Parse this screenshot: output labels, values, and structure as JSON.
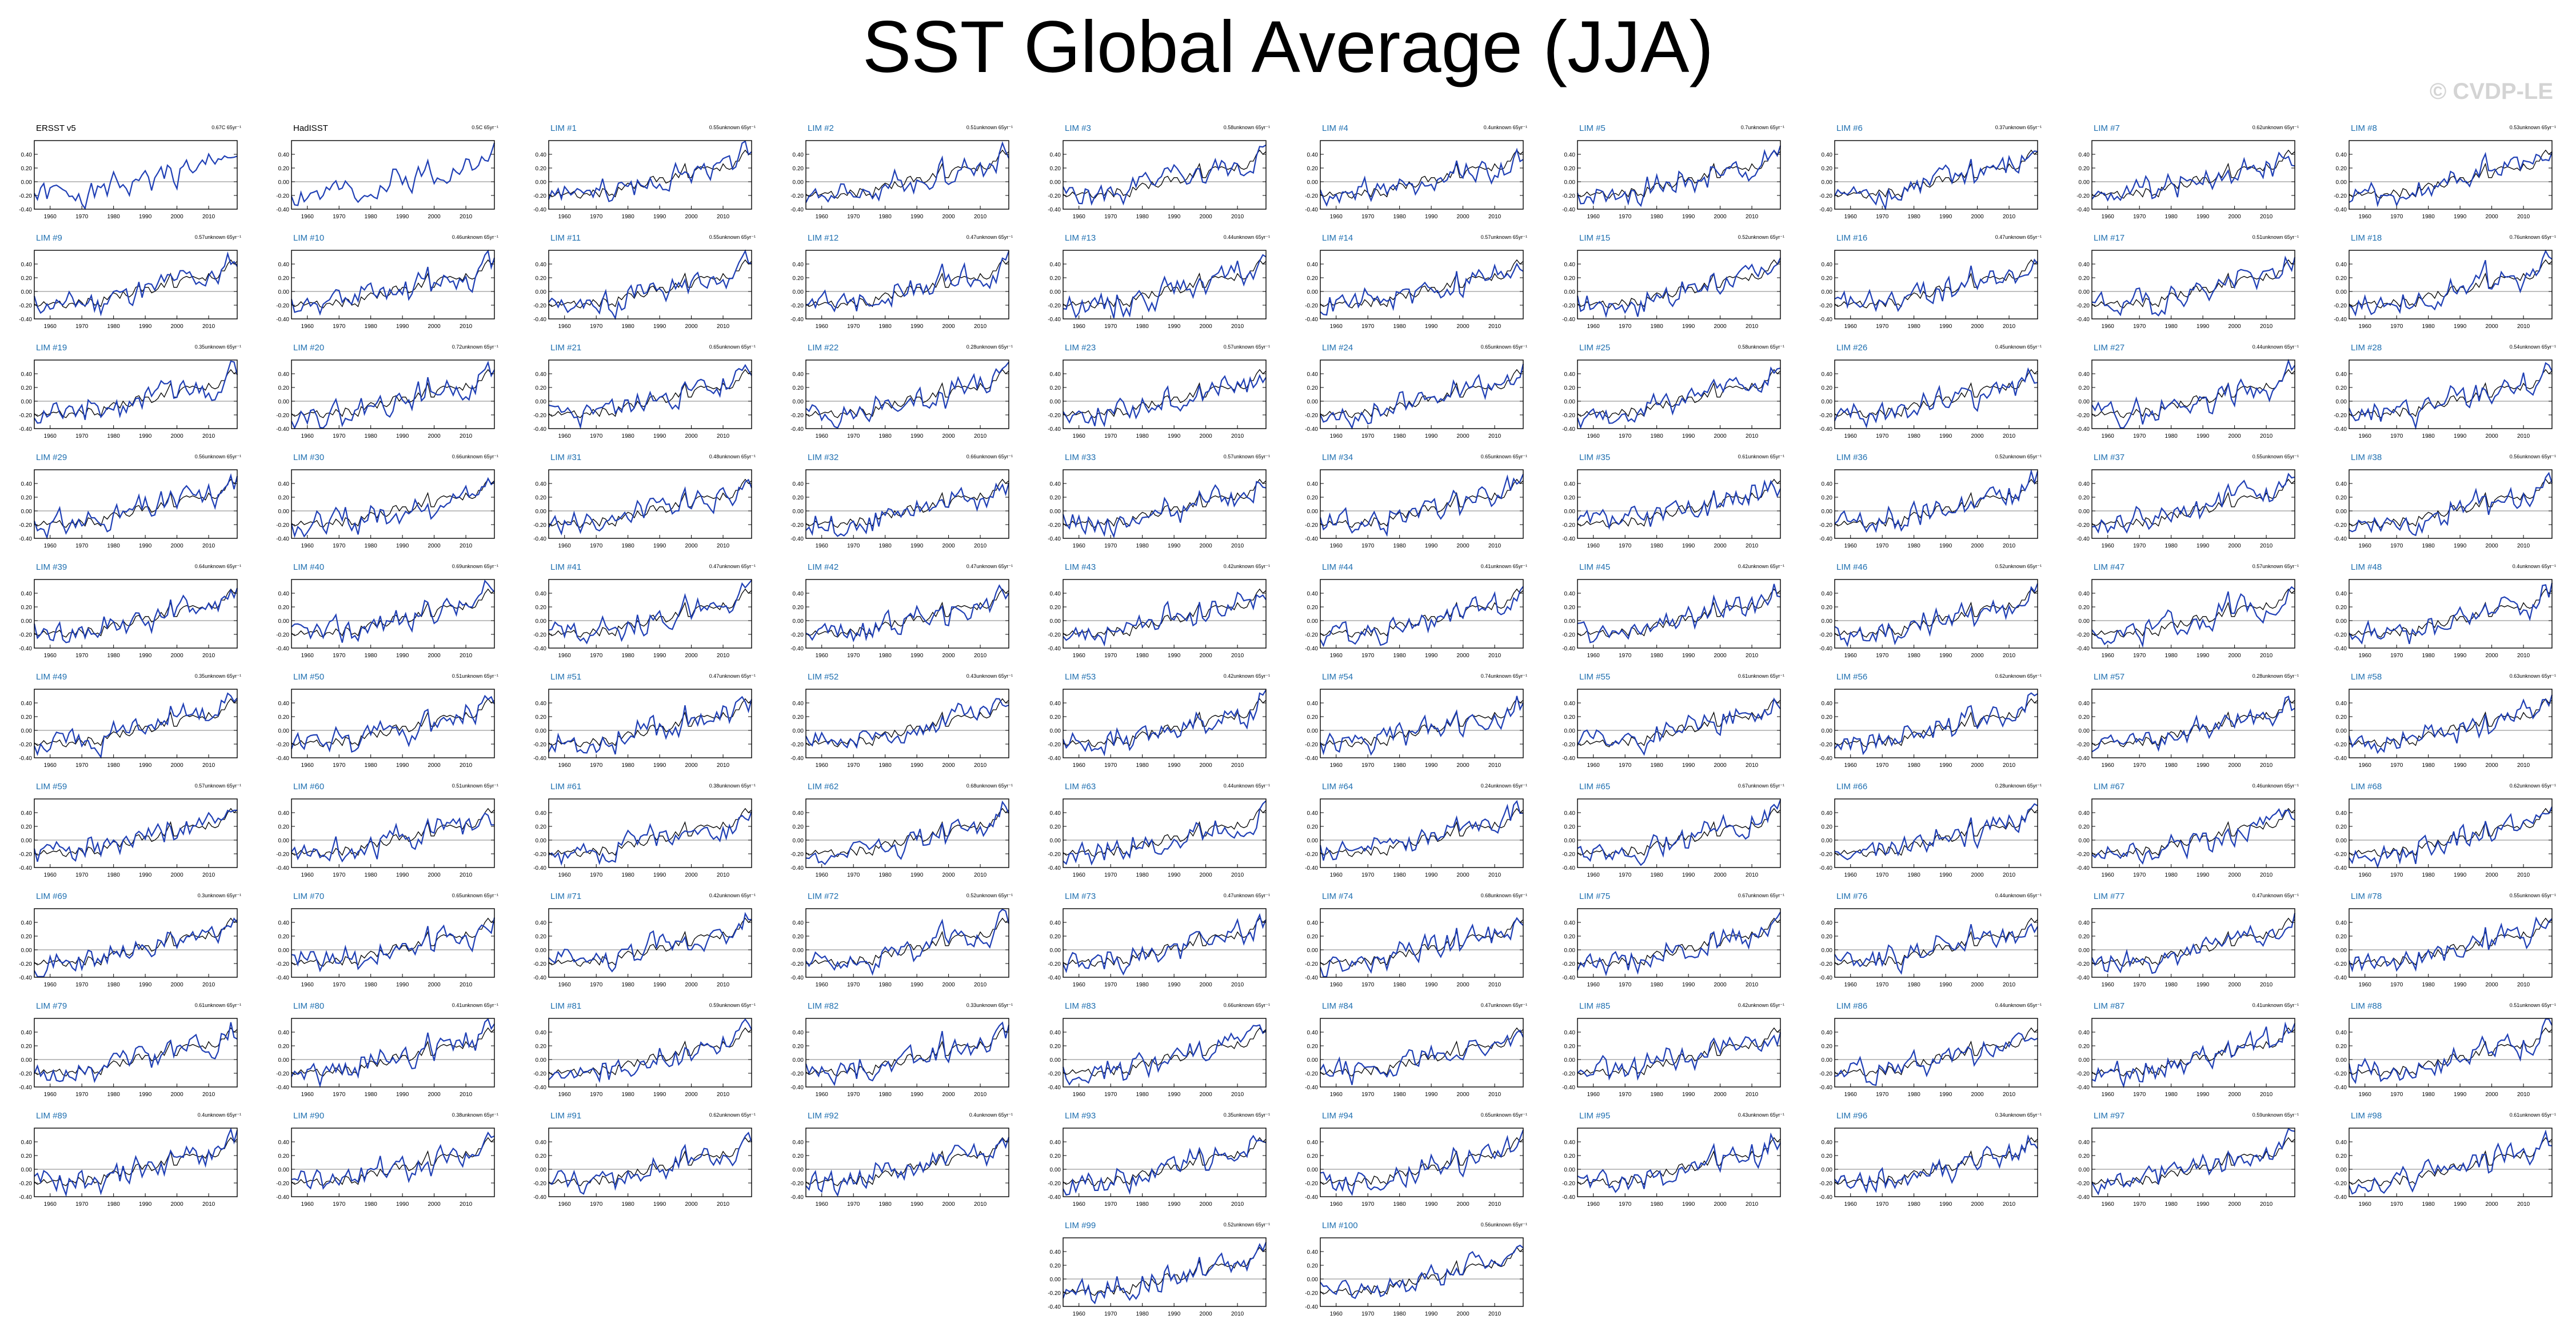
{
  "title": "SST Global Average (JJA)",
  "watermark": "© CVDP-LE",
  "colors": {
    "observed_line": "#000000",
    "lim_line": "#1f3fb5",
    "zero_line": "#999999",
    "lim_title": "#1e6fb0"
  },
  "chart_data": {
    "type": "line",
    "layout": "small multiples, 10 columns",
    "x_range": [
      1955,
      2019
    ],
    "y_range": [
      -0.4,
      0.6
    ],
    "x_ticks": [
      "1960",
      "1970",
      "1980",
      "1990",
      "2000",
      "2010"
    ],
    "y_ticks": [
      "0.40",
      "0.20",
      "0.00",
      "-0.20",
      "-0.40"
    ],
    "years": {
      "start": 1955,
      "end": 2019
    },
    "observed_reference": [
      -0.18,
      -0.22,
      -0.2,
      -0.15,
      -0.2,
      -0.18,
      -0.16,
      -0.17,
      -0.14,
      -0.22,
      -0.24,
      -0.18,
      -0.17,
      -0.2,
      -0.12,
      -0.16,
      -0.22,
      -0.1,
      -0.12,
      -0.2,
      -0.18,
      -0.22,
      -0.08,
      -0.12,
      -0.06,
      -0.02,
      -0.04,
      -0.1,
      0.0,
      -0.06,
      -0.08,
      -0.04,
      0.06,
      0.08,
      0.0,
      0.06,
      0.06,
      -0.02,
      0.0,
      0.04,
      0.12,
      0.06,
      0.16,
      0.26,
      0.06,
      0.06,
      0.16,
      0.2,
      0.22,
      0.2,
      0.22,
      0.2,
      0.18,
      0.2,
      0.16,
      0.26,
      0.2,
      0.18,
      0.2,
      0.3,
      0.3,
      0.4,
      0.46,
      0.4,
      0.44
    ],
    "panels": [
      {
        "title": "ERSST v5",
        "trend": "0.67C 65yr⁻¹",
        "kind": "obs",
        "seed": 1
      },
      {
        "title": "HadISST",
        "trend": "0.5C 65yr⁻¹",
        "kind": "obs",
        "seed": 2
      },
      {
        "title": "LIM #1",
        "trend": "0.55unknown 65yr⁻¹",
        "kind": "lim",
        "seed": 3
      },
      {
        "title": "LIM #2",
        "trend": "0.51unknown 65yr⁻¹",
        "kind": "lim",
        "seed": 4
      },
      {
        "title": "LIM #3",
        "trend": "0.58unknown 65yr⁻¹",
        "kind": "lim",
        "seed": 5
      },
      {
        "title": "LIM #4",
        "trend": "0.4unknown 65yr⁻¹",
        "kind": "lim",
        "seed": 6
      },
      {
        "title": "LIM #5",
        "trend": "0.7unknown 65yr⁻¹",
        "kind": "lim",
        "seed": 7
      },
      {
        "title": "LIM #6",
        "trend": "0.37unknown 65yr⁻¹",
        "kind": "lim",
        "seed": 8
      },
      {
        "title": "LIM #7",
        "trend": "0.62unknown 65yr⁻¹",
        "kind": "lim",
        "seed": 9
      },
      {
        "title": "LIM #8",
        "trend": "0.53unknown 65yr⁻¹",
        "kind": "lim",
        "seed": 10
      },
      {
        "title": "LIM #9",
        "trend": "0.57unknown 65yr⁻¹",
        "kind": "lim",
        "seed": 11
      },
      {
        "title": "LIM #10",
        "trend": "0.46unknown 65yr⁻¹",
        "kind": "lim",
        "seed": 12
      },
      {
        "title": "LIM #11",
        "trend": "0.55unknown 65yr⁻¹",
        "kind": "lim",
        "seed": 13
      },
      {
        "title": "LIM #12",
        "trend": "0.47unknown 65yr⁻¹",
        "kind": "lim",
        "seed": 14
      },
      {
        "title": "LIM #13",
        "trend": "0.44unknown 65yr⁻¹",
        "kind": "lim",
        "seed": 15
      },
      {
        "title": "LIM #14",
        "trend": "0.57unknown 65yr⁻¹",
        "kind": "lim",
        "seed": 16
      },
      {
        "title": "LIM #15",
        "trend": "0.52unknown 65yr⁻¹",
        "kind": "lim",
        "seed": 17
      },
      {
        "title": "LIM #16",
        "trend": "0.47unknown 65yr⁻¹",
        "kind": "lim",
        "seed": 18
      },
      {
        "title": "LIM #17",
        "trend": "0.51unknown 65yr⁻¹",
        "kind": "lim",
        "seed": 19
      },
      {
        "title": "LIM #18",
        "trend": "0.76unknown 65yr⁻¹",
        "kind": "lim",
        "seed": 20
      },
      {
        "title": "LIM #19",
        "trend": "0.35unknown 65yr⁻¹",
        "kind": "lim",
        "seed": 21
      },
      {
        "title": "LIM #20",
        "trend": "0.72unknown 65yr⁻¹",
        "kind": "lim",
        "seed": 22
      },
      {
        "title": "LIM #21",
        "trend": "0.65unknown 65yr⁻¹",
        "kind": "lim",
        "seed": 23
      },
      {
        "title": "LIM #22",
        "trend": "0.28unknown 65yr⁻¹",
        "kind": "lim",
        "seed": 24
      },
      {
        "title": "LIM #23",
        "trend": "0.57unknown 65yr⁻¹",
        "kind": "lim",
        "seed": 25
      },
      {
        "title": "LIM #24",
        "trend": "0.65unknown 65yr⁻¹",
        "kind": "lim",
        "seed": 26
      },
      {
        "title": "LIM #25",
        "trend": "0.58unknown 65yr⁻¹",
        "kind": "lim",
        "seed": 27
      },
      {
        "title": "LIM #26",
        "trend": "0.45unknown 65yr⁻¹",
        "kind": "lim",
        "seed": 28
      },
      {
        "title": "LIM #27",
        "trend": "0.44unknown 65yr⁻¹",
        "kind": "lim",
        "seed": 29
      },
      {
        "title": "LIM #28",
        "trend": "0.54unknown 65yr⁻¹",
        "kind": "lim",
        "seed": 30
      },
      {
        "title": "LIM #29",
        "trend": "0.56unknown 65yr⁻¹",
        "kind": "lim",
        "seed": 31
      },
      {
        "title": "LIM #30",
        "trend": "0.66unknown 65yr⁻¹",
        "kind": "lim",
        "seed": 32
      },
      {
        "title": "LIM #31",
        "trend": "0.48unknown 65yr⁻¹",
        "kind": "lim",
        "seed": 33
      },
      {
        "title": "LIM #32",
        "trend": "0.66unknown 65yr⁻¹",
        "kind": "lim",
        "seed": 34
      },
      {
        "title": "LIM #33",
        "trend": "0.57unknown 65yr⁻¹",
        "kind": "lim",
        "seed": 35
      },
      {
        "title": "LIM #34",
        "trend": "0.65unknown 65yr⁻¹",
        "kind": "lim",
        "seed": 36
      },
      {
        "title": "LIM #35",
        "trend": "0.61unknown 65yr⁻¹",
        "kind": "lim",
        "seed": 37
      },
      {
        "title": "LIM #36",
        "trend": "0.52unknown 65yr⁻¹",
        "kind": "lim",
        "seed": 38
      },
      {
        "title": "LIM #37",
        "trend": "0.55unknown 65yr⁻¹",
        "kind": "lim",
        "seed": 39
      },
      {
        "title": "LIM #38",
        "trend": "0.56unknown 65yr⁻¹",
        "kind": "lim",
        "seed": 40
      },
      {
        "title": "LIM #39",
        "trend": "0.64unknown 65yr⁻¹",
        "kind": "lim",
        "seed": 41
      },
      {
        "title": "LIM #40",
        "trend": "0.69unknown 65yr⁻¹",
        "kind": "lim",
        "seed": 42
      },
      {
        "title": "LIM #41",
        "trend": "0.47unknown 65yr⁻¹",
        "kind": "lim",
        "seed": 43
      },
      {
        "title": "LIM #42",
        "trend": "0.47unknown 65yr⁻¹",
        "kind": "lim",
        "seed": 44
      },
      {
        "title": "LIM #43",
        "trend": "0.42unknown 65yr⁻¹",
        "kind": "lim",
        "seed": 45
      },
      {
        "title": "LIM #44",
        "trend": "0.41unknown 65yr⁻¹",
        "kind": "lim",
        "seed": 46
      },
      {
        "title": "LIM #45",
        "trend": "0.42unknown 65yr⁻¹",
        "kind": "lim",
        "seed": 47
      },
      {
        "title": "LIM #46",
        "trend": "0.52unknown 65yr⁻¹",
        "kind": "lim",
        "seed": 48
      },
      {
        "title": "LIM #47",
        "trend": "0.57unknown 65yr⁻¹",
        "kind": "lim",
        "seed": 49
      },
      {
        "title": "LIM #48",
        "trend": "0.4unknown 65yr⁻¹",
        "kind": "lim",
        "seed": 50
      },
      {
        "title": "LIM #49",
        "trend": "0.35unknown 65yr⁻¹",
        "kind": "lim",
        "seed": 51
      },
      {
        "title": "LIM #50",
        "trend": "0.51unknown 65yr⁻¹",
        "kind": "lim",
        "seed": 52
      },
      {
        "title": "LIM #51",
        "trend": "0.47unknown 65yr⁻¹",
        "kind": "lim",
        "seed": 53
      },
      {
        "title": "LIM #52",
        "trend": "0.43unknown 65yr⁻¹",
        "kind": "lim",
        "seed": 54
      },
      {
        "title": "LIM #53",
        "trend": "0.42unknown 65yr⁻¹",
        "kind": "lim",
        "seed": 55
      },
      {
        "title": "LIM #54",
        "trend": "0.74unknown 65yr⁻¹",
        "kind": "lim",
        "seed": 56
      },
      {
        "title": "LIM #55",
        "trend": "0.61unknown 65yr⁻¹",
        "kind": "lim",
        "seed": 57
      },
      {
        "title": "LIM #56",
        "trend": "0.62unknown 65yr⁻¹",
        "kind": "lim",
        "seed": 58
      },
      {
        "title": "LIM #57",
        "trend": "0.28unknown 65yr⁻¹",
        "kind": "lim",
        "seed": 59
      },
      {
        "title": "LIM #58",
        "trend": "0.63unknown 65yr⁻¹",
        "kind": "lim",
        "seed": 60
      },
      {
        "title": "LIM #59",
        "trend": "0.57unknown 65yr⁻¹",
        "kind": "lim",
        "seed": 61
      },
      {
        "title": "LIM #60",
        "trend": "0.51unknown 65yr⁻¹",
        "kind": "lim",
        "seed": 62
      },
      {
        "title": "LIM #61",
        "trend": "0.38unknown 65yr⁻¹",
        "kind": "lim",
        "seed": 63
      },
      {
        "title": "LIM #62",
        "trend": "0.68unknown 65yr⁻¹",
        "kind": "lim",
        "seed": 64
      },
      {
        "title": "LIM #63",
        "trend": "0.44unknown 65yr⁻¹",
        "kind": "lim",
        "seed": 65
      },
      {
        "title": "LIM #64",
        "trend": "0.24unknown 65yr⁻¹",
        "kind": "lim",
        "seed": 66
      },
      {
        "title": "LIM #65",
        "trend": "0.67unknown 65yr⁻¹",
        "kind": "lim",
        "seed": 67
      },
      {
        "title": "LIM #66",
        "trend": "0.28unknown 65yr⁻¹",
        "kind": "lim",
        "seed": 68
      },
      {
        "title": "LIM #67",
        "trend": "0.46unknown 65yr⁻¹",
        "kind": "lim",
        "seed": 69
      },
      {
        "title": "LIM #68",
        "trend": "0.62unknown 65yr⁻¹",
        "kind": "lim",
        "seed": 70
      },
      {
        "title": "LIM #69",
        "trend": "0.3unknown 65yr⁻¹",
        "kind": "lim",
        "seed": 71
      },
      {
        "title": "LIM #70",
        "trend": "0.65unknown 65yr⁻¹",
        "kind": "lim",
        "seed": 72
      },
      {
        "title": "LIM #71",
        "trend": "0.42unknown 65yr⁻¹",
        "kind": "lim",
        "seed": 73
      },
      {
        "title": "LIM #72",
        "trend": "0.52unknown 65yr⁻¹",
        "kind": "lim",
        "seed": 74
      },
      {
        "title": "LIM #73",
        "trend": "0.47unknown 65yr⁻¹",
        "kind": "lim",
        "seed": 75
      },
      {
        "title": "LIM #74",
        "trend": "0.68unknown 65yr⁻¹",
        "kind": "lim",
        "seed": 76
      },
      {
        "title": "LIM #75",
        "trend": "0.67unknown 65yr⁻¹",
        "kind": "lim",
        "seed": 77
      },
      {
        "title": "LIM #76",
        "trend": "0.44unknown 65yr⁻¹",
        "kind": "lim",
        "seed": 78
      },
      {
        "title": "LIM #77",
        "trend": "0.47unknown 65yr⁻¹",
        "kind": "lim",
        "seed": 79
      },
      {
        "title": "LIM #78",
        "trend": "0.55unknown 65yr⁻¹",
        "kind": "lim",
        "seed": 80
      },
      {
        "title": "LIM #79",
        "trend": "0.61unknown 65yr⁻¹",
        "kind": "lim",
        "seed": 81
      },
      {
        "title": "LIM #80",
        "trend": "0.41unknown 65yr⁻¹",
        "kind": "lim",
        "seed": 82
      },
      {
        "title": "LIM #81",
        "trend": "0.59unknown 65yr⁻¹",
        "kind": "lim",
        "seed": 83
      },
      {
        "title": "LIM #82",
        "trend": "0.33unknown 65yr⁻¹",
        "kind": "lim",
        "seed": 84
      },
      {
        "title": "LIM #83",
        "trend": "0.66unknown 65yr⁻¹",
        "kind": "lim",
        "seed": 85
      },
      {
        "title": "LIM #84",
        "trend": "0.47unknown 65yr⁻¹",
        "kind": "lim",
        "seed": 86
      },
      {
        "title": "LIM #85",
        "trend": "0.42unknown 65yr⁻¹",
        "kind": "lim",
        "seed": 87
      },
      {
        "title": "LIM #86",
        "trend": "0.44unknown 65yr⁻¹",
        "kind": "lim",
        "seed": 88
      },
      {
        "title": "LIM #87",
        "trend": "0.41unknown 65yr⁻¹",
        "kind": "lim",
        "seed": 89
      },
      {
        "title": "LIM #88",
        "trend": "0.51unknown 65yr⁻¹",
        "kind": "lim",
        "seed": 90
      },
      {
        "title": "LIM #89",
        "trend": "0.4unknown 65yr⁻¹",
        "kind": "lim",
        "seed": 91
      },
      {
        "title": "LIM #90",
        "trend": "0.38unknown 65yr⁻¹",
        "kind": "lim",
        "seed": 92
      },
      {
        "title": "LIM #91",
        "trend": "0.62unknown 65yr⁻¹",
        "kind": "lim",
        "seed": 93
      },
      {
        "title": "LIM #92",
        "trend": "0.4unknown 65yr⁻¹",
        "kind": "lim",
        "seed": 94
      },
      {
        "title": "LIM #93",
        "trend": "0.35unknown 65yr⁻¹",
        "kind": "lim",
        "seed": 95
      },
      {
        "title": "LIM #94",
        "trend": "0.65unknown 65yr⁻¹",
        "kind": "lim",
        "seed": 96
      },
      {
        "title": "LIM #95",
        "trend": "0.43unknown 65yr⁻¹",
        "kind": "lim",
        "seed": 97
      },
      {
        "title": "LIM #96",
        "trend": "0.34unknown 65yr⁻¹",
        "kind": "lim",
        "seed": 98
      },
      {
        "title": "LIM #97",
        "trend": "0.59unknown 65yr⁻¹",
        "kind": "lim",
        "seed": 99
      },
      {
        "title": "LIM #98",
        "trend": "0.61unknown 65yr⁻¹",
        "kind": "lim",
        "seed": 100
      },
      {
        "title": "LIM #99",
        "trend": "0.52unknown 65yr⁻¹",
        "kind": "lim",
        "seed": 101
      },
      {
        "title": "LIM #100",
        "trend": "0.56unknown 65yr⁻¹",
        "kind": "lim",
        "seed": 102
      }
    ]
  }
}
